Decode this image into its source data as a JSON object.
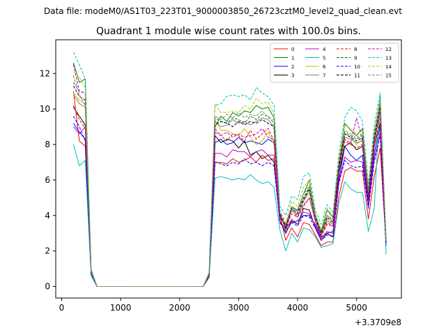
{
  "suptitle": "Data file: modeM0/AS1T03_223T01_9000003850_26723cztM0_level2_quad_clean.evt",
  "chart_data": {
    "type": "line",
    "title": "Quadrant 1 module wise count rates with 100.0s bins.",
    "xlabel": "",
    "ylabel": "",
    "x_offset_label": "+3.3709e8",
    "xlim": [
      -100,
      5760
    ],
    "ylim": [
      -0.65,
      13.9
    ],
    "x_ticks": [
      0,
      1000,
      2000,
      3000,
      4000,
      5000
    ],
    "x_tick_labels": [
      "0",
      "1000",
      "2000",
      "3000",
      "4000",
      "5000"
    ],
    "y_ticks": [
      0,
      2,
      4,
      6,
      8,
      10,
      12
    ],
    "y_tick_labels": [
      "0",
      "2",
      "4",
      "6",
      "8",
      "10",
      "12"
    ],
    "grid": false,
    "legend_position": "upper-right",
    "legend_columns": 4,
    "x": [
      200,
      300,
      400,
      500,
      600,
      700,
      800,
      900,
      1000,
      1100,
      1200,
      1300,
      1400,
      1500,
      1600,
      1700,
      1800,
      1900,
      2000,
      2100,
      2200,
      2300,
      2400,
      2500,
      2600,
      2700,
      2800,
      2900,
      3000,
      3100,
      3200,
      3300,
      3400,
      3500,
      3600,
      3700,
      3800,
      3900,
      4000,
      4100,
      4200,
      4300,
      4400,
      4500,
      4600,
      4700,
      4800,
      4900,
      5000,
      5100,
      5200,
      5300,
      5400,
      5500
    ],
    "series": [
      {
        "name": "0",
        "color": "#ff0000",
        "dash": false,
        "values": [
          11.0,
          8.2,
          7.9,
          0.7,
          0,
          0,
          0,
          0,
          0,
          0,
          0,
          0,
          0,
          0,
          0,
          0,
          0,
          0,
          0,
          0,
          0,
          0,
          0,
          0.5,
          7.0,
          7.0,
          6.9,
          7.2,
          7.0,
          7.1,
          7.3,
          7.0,
          7.4,
          7.1,
          7.2,
          4.0,
          2.6,
          3.3,
          2.8,
          3.6,
          3.5,
          2.9,
          2.3,
          2.5,
          2.5,
          5.1,
          6.5,
          6.7,
          6.5,
          6.5,
          3.8,
          6.2,
          7.8,
          2.4
        ]
      },
      {
        "name": "1",
        "color": "#008000",
        "dash": false,
        "values": [
          12.6,
          11.5,
          11.7,
          0.9,
          0,
          0,
          0,
          0,
          0,
          0,
          0,
          0,
          0,
          0,
          0,
          0,
          0,
          0,
          0,
          0,
          0,
          0,
          0,
          0.7,
          9.0,
          9.6,
          9.3,
          9.8,
          9.6,
          9.9,
          9.8,
          10.2,
          10.0,
          10.1,
          9.5,
          4.1,
          3.2,
          4.5,
          4.3,
          5.2,
          6.0,
          4.0,
          3.1,
          4.3,
          3.9,
          7.0,
          9.2,
          8.8,
          8.5,
          8.9,
          5.4,
          8.6,
          10.6,
          2.6
        ]
      },
      {
        "name": "2",
        "color": "#0000ff",
        "dash": false,
        "values": [
          9.2,
          8.7,
          8.3,
          0.8,
          0,
          0,
          0,
          0,
          0,
          0,
          0,
          0,
          0,
          0,
          0,
          0,
          0,
          0,
          0,
          0,
          0,
          0,
          0,
          0.6,
          8.1,
          8.3,
          8.0,
          8.1,
          8.4,
          8.1,
          8.2,
          8.1,
          8.0,
          8.3,
          8.1,
          3.9,
          3.4,
          3.6,
          3.7,
          4.0,
          4.0,
          3.5,
          2.8,
          3.0,
          3.1,
          6.0,
          7.9,
          7.4,
          7.1,
          7.4,
          4.6,
          7.5,
          9.0,
          2.4
        ]
      },
      {
        "name": "3",
        "color": "#000000",
        "dash": false,
        "values": [
          10.1,
          9.6,
          9.1,
          0.8,
          0,
          0,
          0,
          0,
          0,
          0,
          0,
          0,
          0,
          0,
          0,
          0,
          0,
          0,
          0,
          0,
          0,
          0,
          0,
          0.6,
          8.5,
          8.1,
          8.3,
          8.2,
          7.8,
          8.2,
          7.4,
          7.6,
          7.2,
          7.4,
          7.0,
          3.7,
          3.0,
          3.7,
          3.5,
          4.4,
          4.3,
          3.3,
          2.6,
          3.0,
          2.8,
          6.4,
          7.9,
          8.1,
          7.7,
          7.9,
          4.9,
          7.9,
          9.2,
          2.4
        ]
      },
      {
        "name": "4",
        "color": "#c000c0",
        "dash": false,
        "values": [
          9.0,
          8.6,
          9.0,
          0.8,
          0,
          0,
          0,
          0,
          0,
          0,
          0,
          0,
          0,
          0,
          0,
          0,
          0,
          0,
          0,
          0,
          0,
          0,
          0,
          0.6,
          7.5,
          7.5,
          7.3,
          7.7,
          7.6,
          7.6,
          7.3,
          7.6,
          7.7,
          7.4,
          7.4,
          3.7,
          3.2,
          3.8,
          3.5,
          4.2,
          4.1,
          3.4,
          2.7,
          3.1,
          3.0,
          5.9,
          7.3,
          7.0,
          7.1,
          7.0,
          4.5,
          7.2,
          8.7,
          2.4
        ]
      },
      {
        "name": "5",
        "color": "#00bfbf",
        "dash": false,
        "values": [
          8.0,
          6.8,
          7.1,
          0.6,
          0,
          0,
          0,
          0,
          0,
          0,
          0,
          0,
          0,
          0,
          0,
          0,
          0,
          0,
          0,
          0,
          0,
          0,
          0,
          0.5,
          6.1,
          6.2,
          6.1,
          6.0,
          6.1,
          6.0,
          6.3,
          6.0,
          5.8,
          5.9,
          5.6,
          3.2,
          2.0,
          3.0,
          2.5,
          3.3,
          3.2,
          2.8,
          2.2,
          2.3,
          2.4,
          4.7,
          5.9,
          5.5,
          5.3,
          5.3,
          3.1,
          4.4,
          10.8,
          1.8
        ]
      },
      {
        "name": "6",
        "color": "#bfbf00",
        "dash": false,
        "values": [
          10.9,
          10.5,
          10.3,
          0.8,
          0,
          0,
          0,
          0,
          0,
          0,
          0,
          0,
          0,
          0,
          0,
          0,
          0,
          0,
          0,
          0,
          0,
          0,
          0,
          0.7,
          9.4,
          8.8,
          8.8,
          8.6,
          8.5,
          8.9,
          8.4,
          8.0,
          8.2,
          8.7,
          8.0,
          4.0,
          3.4,
          4.3,
          3.9,
          4.8,
          5.5,
          3.8,
          3.0,
          3.8,
          3.5,
          6.8,
          8.6,
          8.4,
          8.0,
          8.3,
          5.2,
          8.1,
          10.0,
          2.5
        ]
      },
      {
        "name": "7",
        "color": "#808080",
        "dash": false,
        "values": [
          10.8,
          10.3,
          10.1,
          0.8,
          0,
          0,
          0,
          0,
          0,
          0,
          0,
          0,
          0,
          0,
          0,
          0,
          0,
          0,
          0,
          0,
          0,
          0,
          0,
          0.7,
          9.3,
          9.0,
          9.1,
          9.4,
          9.2,
          9.3,
          9.1,
          9.3,
          9.5,
          9.4,
          9.0,
          4.0,
          3.3,
          4.3,
          3.9,
          4.8,
          5.3,
          3.8,
          2.9,
          3.7,
          3.5,
          6.7,
          8.4,
          8.3,
          8.1,
          8.2,
          5.1,
          8.2,
          9.8,
          2.5
        ]
      },
      {
        "name": "8",
        "color": "#ff0000",
        "dash": true,
        "values": [
          10.2,
          9.4,
          8.9,
          0.8,
          0,
          0,
          0,
          0,
          0,
          0,
          0,
          0,
          0,
          0,
          0,
          0,
          0,
          0,
          0,
          0,
          0,
          0,
          0,
          0.6,
          8.7,
          8.5,
          8.2,
          8.6,
          8.5,
          8.2,
          8.8,
          8.3,
          8.6,
          8.9,
          8.2,
          4.0,
          3.3,
          4.1,
          3.9,
          4.5,
          5.0,
          3.7,
          2.8,
          3.5,
          3.4,
          6.5,
          8.2,
          8.0,
          7.8,
          8.0,
          5.0,
          7.9,
          9.5,
          2.5
        ]
      },
      {
        "name": "9",
        "color": "#008000",
        "dash": true,
        "values": [
          11.5,
          11.0,
          10.9,
          0.9,
          0,
          0,
          0,
          0,
          0,
          0,
          0,
          0,
          0,
          0,
          0,
          0,
          0,
          0,
          0,
          0,
          0,
          0,
          0,
          0.7,
          9.5,
          9.3,
          9.2,
          9.5,
          9.4,
          9.2,
          9.6,
          9.4,
          9.7,
          9.6,
          9.2,
          4.1,
          3.4,
          4.5,
          4.2,
          5.0,
          5.6,
          3.9,
          3.0,
          4.0,
          3.7,
          6.9,
          8.7,
          8.5,
          8.3,
          8.5,
          5.3,
          8.4,
          10.2,
          2.6
        ]
      },
      {
        "name": "10",
        "color": "#0000ff",
        "dash": true,
        "values": [
          9.6,
          9.0,
          8.2,
          0.7,
          0,
          0,
          0,
          0,
          0,
          0,
          0,
          0,
          0,
          0,
          0,
          0,
          0,
          0,
          0,
          0,
          0,
          0,
          0,
          0.6,
          7.0,
          6.9,
          6.8,
          7.0,
          6.9,
          7.2,
          6.9,
          7.0,
          6.8,
          7.0,
          6.8,
          3.6,
          3.1,
          3.6,
          3.4,
          4.0,
          3.9,
          3.3,
          2.6,
          2.9,
          2.8,
          5.8,
          7.1,
          6.8,
          6.7,
          6.8,
          4.4,
          7.0,
          8.5,
          2.3
        ]
      },
      {
        "name": "11",
        "color": "#000000",
        "dash": true,
        "values": [
          11.3,
          10.7,
          10.5,
          0.9,
          0,
          0,
          0,
          0,
          0,
          0,
          0,
          0,
          0,
          0,
          0,
          0,
          0,
          0,
          0,
          0,
          0,
          0,
          0,
          0.7,
          9.1,
          9.3,
          9.2,
          9.0,
          9.3,
          9.1,
          9.3,
          9.2,
          9.4,
          9.2,
          9.0,
          4.1,
          3.3,
          4.4,
          4.1,
          4.9,
          5.5,
          3.9,
          3.0,
          3.9,
          3.6,
          6.8,
          8.6,
          8.4,
          8.2,
          8.4,
          5.2,
          8.3,
          10.1,
          2.6
        ]
      },
      {
        "name": "12",
        "color": "#c000c0",
        "dash": true,
        "values": [
          12.5,
          11.0,
          10.9,
          0.9,
          0,
          0,
          0,
          0,
          0,
          0,
          0,
          0,
          0,
          0,
          0,
          0,
          0,
          0,
          0,
          0,
          0,
          0,
          0,
          0.7,
          8.9,
          8.5,
          8.7,
          8.4,
          8.6,
          8.4,
          8.5,
          8.6,
          8.9,
          8.4,
          8.3,
          4.0,
          3.5,
          4.4,
          4.0,
          4.6,
          5.0,
          3.7,
          2.9,
          3.6,
          3.4,
          6.6,
          8.3,
          8.1,
          9.5,
          8.2,
          5.1,
          8.1,
          9.9,
          2.5
        ]
      },
      {
        "name": "13",
        "color": "#00bfbf",
        "dash": true,
        "values": [
          13.2,
          12.5,
          11.7,
          1.0,
          0,
          0,
          0,
          0,
          0,
          0,
          0,
          0,
          0,
          0,
          0,
          0,
          0,
          0,
          0,
          0,
          0,
          0,
          0,
          0.8,
          10.2,
          10.3,
          10.7,
          10.8,
          10.7,
          10.8,
          10.5,
          11.2,
          10.9,
          10.7,
          10.2,
          4.5,
          4.0,
          5.1,
          4.9,
          6.2,
          6.4,
          4.3,
          3.5,
          4.6,
          4.2,
          7.5,
          9.5,
          10.1,
          9.9,
          9.3,
          5.8,
          9.1,
          10.9,
          2.7
        ]
      },
      {
        "name": "14",
        "color": "#bfbf00",
        "dash": true,
        "values": [
          12.1,
          11.8,
          11.2,
          0.9,
          0,
          0,
          0,
          0,
          0,
          0,
          0,
          0,
          0,
          0,
          0,
          0,
          0,
          0,
          0,
          0,
          0,
          0,
          0,
          0.8,
          10.3,
          9.8,
          9.8,
          9.9,
          9.8,
          10.2,
          10.0,
          10.6,
          10.3,
          10.4,
          9.7,
          4.3,
          3.6,
          4.8,
          4.5,
          5.6,
          6.0,
          4.1,
          3.2,
          4.4,
          4.0,
          7.2,
          9.1,
          8.9,
          8.6,
          8.8,
          5.5,
          8.7,
          10.5,
          2.6
        ]
      },
      {
        "name": "15",
        "color": "#808080",
        "dash": true,
        "values": [
          11.9,
          10.8,
          10.2,
          0.8,
          0,
          0,
          0,
          0,
          0,
          0,
          0,
          0,
          0,
          0,
          0,
          0,
          0,
          0,
          0,
          0,
          0,
          0,
          0,
          0.7,
          9.6,
          9.4,
          9.7,
          9.5,
          9.8,
          9.5,
          9.7,
          9.6,
          9.9,
          9.5,
          9.4,
          4.2,
          3.5,
          4.5,
          4.2,
          5.2,
          5.7,
          4.0,
          3.1,
          4.0,
          3.8,
          7.0,
          8.8,
          8.6,
          8.4,
          8.6,
          5.3,
          8.5,
          10.3,
          2.6
        ]
      }
    ]
  }
}
